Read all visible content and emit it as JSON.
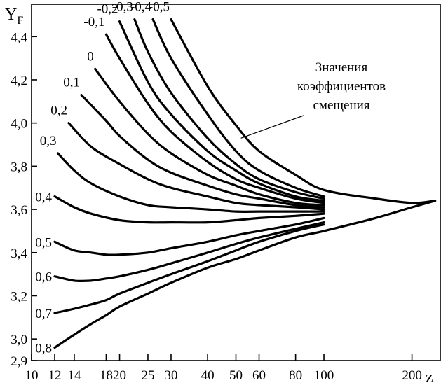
{
  "chart_data": {
    "type": "line",
    "title": "",
    "ylabel": "Y",
    "ylabel_sub": "F",
    "xlabel": "z",
    "x_scale": "log",
    "xlim": [
      10,
      250
    ],
    "ylim": [
      2.9,
      4.55
    ],
    "x_ticks": [
      10,
      12,
      14,
      18,
      20,
      25,
      30,
      40,
      50,
      60,
      80,
      100,
      200
    ],
    "y_ticks": [
      2.9,
      3.0,
      3.2,
      3.4,
      3.6,
      3.8,
      4.0,
      4.2,
      4.4
    ],
    "x_tick_labels": [
      "10",
      "12",
      "14",
      "18",
      "20",
      "25",
      "30",
      "40",
      "50",
      "60",
      "80",
      "100",
      "200"
    ],
    "y_tick_labels": [
      "2,9",
      "3,0",
      "3,2",
      "3,4",
      "3,6",
      "3,8",
      "4,0",
      "4,2",
      "4,4"
    ],
    "grid": false,
    "annotation": {
      "lines": [
        "Значения",
        "коэффициентов",
        "смещения"
      ],
      "points_to_z": 52,
      "points_to_y": 3.93
    },
    "series": [
      {
        "name": "-0,5",
        "label": "-0,5",
        "points": [
          [
            30,
            4.48
          ],
          [
            40,
            4.17
          ],
          [
            50,
            3.99
          ],
          [
            60,
            3.87
          ],
          [
            80,
            3.76
          ],
          [
            100,
            3.69
          ],
          [
            150,
            3.65
          ],
          [
            200,
            3.63
          ],
          [
            240,
            3.64
          ]
        ]
      },
      {
        "name": "-0,4",
        "label": "-0,4",
        "points": [
          [
            26,
            4.48
          ],
          [
            30,
            4.3
          ],
          [
            40,
            4.04
          ],
          [
            50,
            3.87
          ],
          [
            60,
            3.78
          ],
          [
            80,
            3.7
          ],
          [
            100,
            3.66
          ]
        ]
      },
      {
        "name": "-0,3",
        "label": "-0,3",
        "points": [
          [
            22.5,
            4.48
          ],
          [
            25,
            4.33
          ],
          [
            30,
            4.14
          ],
          [
            40,
            3.93
          ],
          [
            50,
            3.81
          ],
          [
            60,
            3.74
          ],
          [
            80,
            3.68
          ],
          [
            100,
            3.65
          ]
        ]
      },
      {
        "name": "-0,2",
        "label": "-0,2",
        "points": [
          [
            20,
            4.47
          ],
          [
            25,
            4.19
          ],
          [
            30,
            4.04
          ],
          [
            40,
            3.87
          ],
          [
            50,
            3.78
          ],
          [
            60,
            3.72
          ],
          [
            80,
            3.66
          ],
          [
            100,
            3.64
          ]
        ]
      },
      {
        "name": "-0,1",
        "label": "-0,1",
        "points": [
          [
            18,
            4.41
          ],
          [
            20,
            4.3
          ],
          [
            25,
            4.09
          ],
          [
            30,
            3.96
          ],
          [
            40,
            3.82
          ],
          [
            50,
            3.74
          ],
          [
            60,
            3.7
          ],
          [
            80,
            3.65
          ],
          [
            100,
            3.63
          ]
        ]
      },
      {
        "name": "0",
        "label": "0",
        "points": [
          [
            16.5,
            4.25
          ],
          [
            20,
            4.1
          ],
          [
            25,
            3.95
          ],
          [
            30,
            3.86
          ],
          [
            40,
            3.76
          ],
          [
            50,
            3.71
          ],
          [
            60,
            3.67
          ],
          [
            80,
            3.63
          ],
          [
            100,
            3.62
          ]
        ]
      },
      {
        "name": "0,1",
        "label": "0,1",
        "points": [
          [
            14.8,
            4.13
          ],
          [
            18,
            4.01
          ],
          [
            20,
            3.94
          ],
          [
            25,
            3.83
          ],
          [
            30,
            3.77
          ],
          [
            40,
            3.71
          ],
          [
            50,
            3.67
          ],
          [
            60,
            3.65
          ],
          [
            80,
            3.62
          ],
          [
            100,
            3.61
          ]
        ]
      },
      {
        "name": "0,2",
        "label": "0,2",
        "points": [
          [
            13.4,
            4.0
          ],
          [
            16,
            3.89
          ],
          [
            20,
            3.81
          ],
          [
            25,
            3.74
          ],
          [
            30,
            3.7
          ],
          [
            40,
            3.66
          ],
          [
            50,
            3.63
          ],
          [
            60,
            3.62
          ],
          [
            80,
            3.61
          ],
          [
            100,
            3.6
          ]
        ]
      },
      {
        "name": "0,3",
        "label": "0,3",
        "points": [
          [
            12.3,
            3.86
          ],
          [
            14,
            3.78
          ],
          [
            16,
            3.72
          ],
          [
            20,
            3.66
          ],
          [
            25,
            3.62
          ],
          [
            30,
            3.61
          ],
          [
            40,
            3.6
          ],
          [
            50,
            3.59
          ],
          [
            60,
            3.59
          ],
          [
            80,
            3.59
          ],
          [
            100,
            3.59
          ]
        ]
      },
      {
        "name": "0,4",
        "label": "0,4",
        "points": [
          [
            12,
            3.66
          ],
          [
            14,
            3.61
          ],
          [
            16,
            3.58
          ],
          [
            20,
            3.55
          ],
          [
            25,
            3.54
          ],
          [
            30,
            3.54
          ],
          [
            40,
            3.54
          ],
          [
            50,
            3.55
          ],
          [
            60,
            3.56
          ],
          [
            80,
            3.57
          ],
          [
            100,
            3.58
          ]
        ]
      },
      {
        "name": "0,5",
        "label": "0,5",
        "points": [
          [
            12,
            3.45
          ],
          [
            14,
            3.41
          ],
          [
            16,
            3.4
          ],
          [
            18,
            3.39
          ],
          [
            20,
            3.39
          ],
          [
            25,
            3.4
          ],
          [
            30,
            3.42
          ],
          [
            40,
            3.45
          ],
          [
            50,
            3.48
          ],
          [
            60,
            3.5
          ],
          [
            80,
            3.53
          ],
          [
            100,
            3.56
          ]
        ]
      },
      {
        "name": "0,6",
        "label": "0,6",
        "points": [
          [
            12,
            3.29
          ],
          [
            14,
            3.27
          ],
          [
            16,
            3.27
          ],
          [
            18,
            3.28
          ],
          [
            20,
            3.29
          ],
          [
            25,
            3.32
          ],
          [
            30,
            3.35
          ],
          [
            40,
            3.4
          ],
          [
            50,
            3.44
          ],
          [
            60,
            3.47
          ],
          [
            80,
            3.51
          ],
          [
            100,
            3.54
          ]
        ]
      },
      {
        "name": "0,7",
        "label": "0,7",
        "points": [
          [
            12,
            3.12
          ],
          [
            14,
            3.14
          ],
          [
            16,
            3.16
          ],
          [
            18,
            3.18
          ],
          [
            20,
            3.21
          ],
          [
            25,
            3.26
          ],
          [
            30,
            3.3
          ],
          [
            40,
            3.36
          ],
          [
            50,
            3.41
          ],
          [
            60,
            3.45
          ],
          [
            80,
            3.5
          ],
          [
            100,
            3.53
          ]
        ]
      },
      {
        "name": "0,8",
        "label": "0,8",
        "points": [
          [
            12,
            2.96
          ],
          [
            14,
            3.02
          ],
          [
            16,
            3.07
          ],
          [
            18,
            3.11
          ],
          [
            20,
            3.15
          ],
          [
            25,
            3.21
          ],
          [
            30,
            3.26
          ],
          [
            40,
            3.33
          ],
          [
            50,
            3.37
          ],
          [
            60,
            3.41
          ],
          [
            80,
            3.47
          ],
          [
            100,
            3.5
          ],
          [
            150,
            3.56
          ],
          [
            200,
            3.61
          ],
          [
            240,
            3.64
          ]
        ]
      }
    ]
  }
}
